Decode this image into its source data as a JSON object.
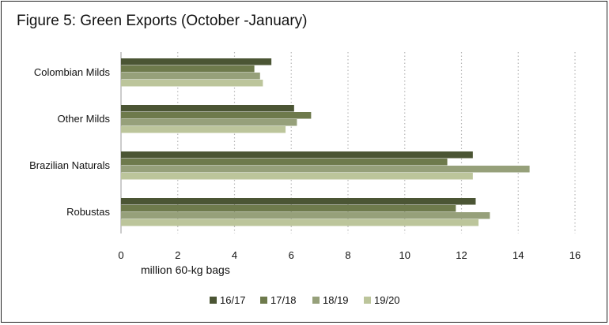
{
  "title": "Figure 5: Green Exports (October -January)",
  "chart_data": {
    "type": "bar",
    "orientation": "horizontal",
    "categories": [
      "Colombian Milds",
      "Other Milds",
      "Brazilian Naturals",
      "Robustas"
    ],
    "series": [
      {
        "name": "16/17",
        "color": "#4b5534",
        "values": [
          5.3,
          6.1,
          12.4,
          12.5
        ]
      },
      {
        "name": "17/18",
        "color": "#6e7a4c",
        "values": [
          4.7,
          6.7,
          11.5,
          11.8
        ]
      },
      {
        "name": "18/19",
        "color": "#96a07a",
        "values": [
          4.9,
          6.2,
          14.4,
          13.0
        ]
      },
      {
        "name": "19/20",
        "color": "#bcc59b",
        "values": [
          5.0,
          5.8,
          12.4,
          12.6
        ]
      }
    ],
    "xlabel": "million 60-kg bags",
    "xticks": [
      0,
      2,
      4,
      6,
      8,
      10,
      12,
      14,
      16
    ],
    "xlim": [
      0,
      16
    ],
    "grid": "vertical dotted",
    "legend_position": "bottom-center"
  }
}
